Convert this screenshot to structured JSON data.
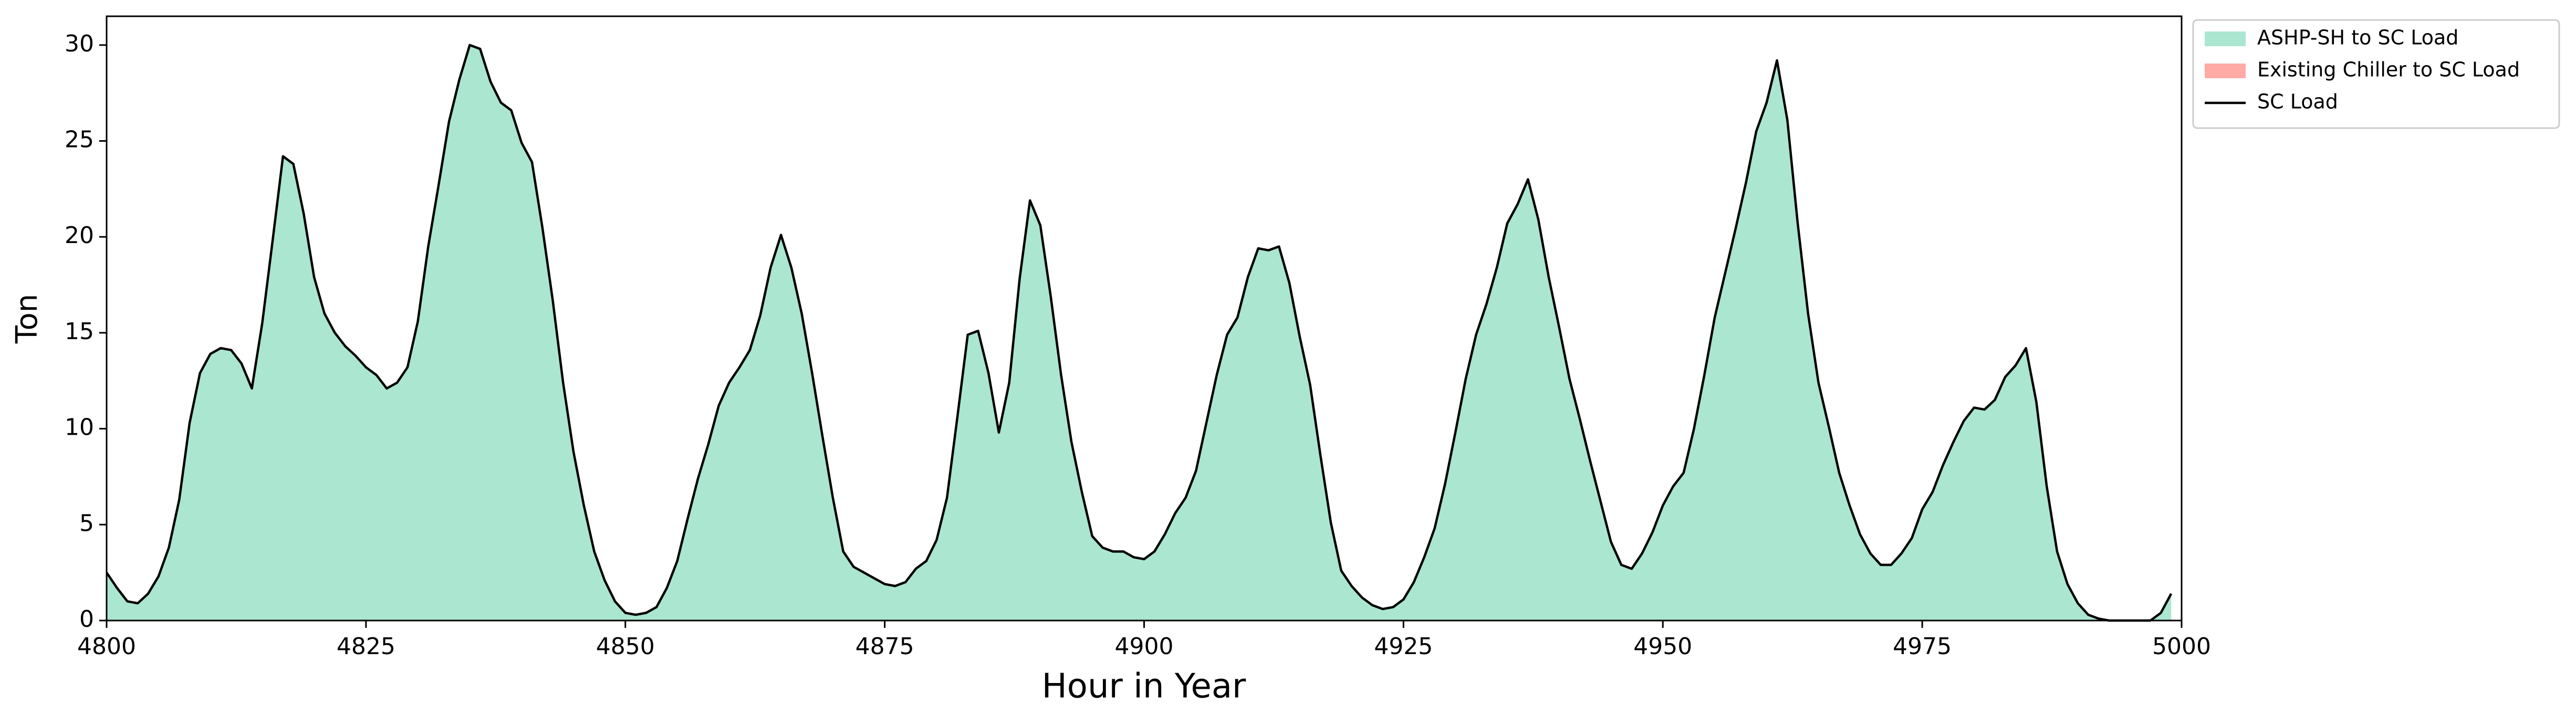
{
  "chart_data": {
    "type": "stacked-area-line",
    "xlabel": "Hour in Year",
    "ylabel": "Ton",
    "x": [
      4800,
      4801,
      4802,
      4803,
      4804,
      4805,
      4806,
      4807,
      4808,
      4809,
      4810,
      4811,
      4812,
      4813,
      4814,
      4815,
      4816,
      4817,
      4818,
      4819,
      4820,
      4821,
      4822,
      4823,
      4824,
      4825,
      4826,
      4827,
      4828,
      4829,
      4830,
      4831,
      4832,
      4833,
      4834,
      4835,
      4836,
      4837,
      4838,
      4839,
      4840,
      4841,
      4842,
      4843,
      4844,
      4845,
      4846,
      4847,
      4848,
      4849,
      4850,
      4851,
      4852,
      4853,
      4854,
      4855,
      4856,
      4857,
      4858,
      4859,
      4860,
      4861,
      4862,
      4863,
      4864,
      4865,
      4866,
      4867,
      4868,
      4869,
      4870,
      4871,
      4872,
      4873,
      4874,
      4875,
      4876,
      4877,
      4878,
      4879,
      4880,
      4881,
      4882,
      4883,
      4884,
      4885,
      4886,
      4887,
      4888,
      4889,
      4890,
      4891,
      4892,
      4893,
      4894,
      4895,
      4896,
      4897,
      4898,
      4899,
      4900,
      4901,
      4902,
      4903,
      4904,
      4905,
      4906,
      4907,
      4908,
      4909,
      4910,
      4911,
      4912,
      4913,
      4914,
      4915,
      4916,
      4917,
      4918,
      4919,
      4920,
      4921,
      4922,
      4923,
      4924,
      4925,
      4926,
      4927,
      4928,
      4929,
      4930,
      4931,
      4932,
      4933,
      4934,
      4935,
      4936,
      4937,
      4938,
      4939,
      4940,
      4941,
      4942,
      4943,
      4944,
      4945,
      4946,
      4947,
      4948,
      4949,
      4950,
      4951,
      4952,
      4953,
      4954,
      4955,
      4956,
      4957,
      4958,
      4959,
      4960,
      4961,
      4962,
      4963,
      4964,
      4965,
      4966,
      4967,
      4968,
      4969,
      4970,
      4971,
      4972,
      4973,
      4974,
      4975,
      4976,
      4977,
      4978,
      4979,
      4980,
      4981,
      4982,
      4983,
      4984,
      4985,
      4986,
      4987,
      4988,
      4989,
      4990,
      4991,
      4992,
      4993,
      4994,
      4995,
      4996,
      4997,
      4998,
      4999
    ],
    "series": [
      {
        "name": "ASHP-SH to SC Load",
        "kind": "area",
        "color": "#aae6d0",
        "values": [
          2.5,
          1.7,
          1.0,
          0.9,
          1.4,
          2.3,
          3.8,
          6.3,
          10.3,
          12.9,
          13.9,
          14.2,
          14.1,
          13.4,
          12.1,
          15.5,
          19.8,
          24.2,
          23.8,
          21.2,
          17.9,
          16.0,
          15.0,
          14.3,
          13.8,
          13.2,
          12.8,
          12.1,
          12.4,
          13.2,
          15.6,
          19.5,
          22.7,
          26.0,
          28.2,
          30.0,
          29.8,
          28.1,
          27.0,
          26.6,
          24.9,
          23.9,
          20.5,
          16.7,
          12.4,
          8.8,
          6.0,
          3.6,
          2.1,
          1.0,
          0.4,
          0.3,
          0.4,
          0.7,
          1.7,
          3.1,
          5.3,
          7.4,
          9.2,
          11.2,
          12.4,
          13.2,
          14.1,
          15.9,
          18.4,
          20.1,
          18.4,
          16.0,
          12.9,
          9.6,
          6.4,
          3.6,
          2.8,
          2.5,
          2.2,
          1.9,
          1.8,
          2.0,
          2.7,
          3.1,
          4.2,
          6.4,
          10.6,
          14.9,
          15.1,
          12.9,
          9.8,
          12.4,
          17.8,
          21.9,
          20.6,
          16.9,
          12.8,
          9.3,
          6.7,
          4.4,
          3.8,
          3.6,
          3.6,
          3.3,
          3.2,
          3.6,
          4.5,
          5.6,
          6.4,
          7.8,
          10.3,
          12.8,
          14.9,
          15.8,
          17.9,
          19.4,
          19.3,
          19.5,
          17.6,
          14.8,
          12.3,
          8.6,
          5.1,
          2.6,
          1.8,
          1.2,
          0.8,
          0.6,
          0.7,
          1.1,
          2.0,
          3.3,
          4.8,
          7.1,
          9.8,
          12.6,
          14.9,
          16.5,
          18.4,
          20.7,
          21.7,
          23.0,
          20.9,
          17.9,
          15.3,
          12.6,
          10.5,
          8.3,
          6.2,
          4.1,
          2.9,
          2.7,
          3.5,
          4.6,
          6.0,
          7.0,
          7.7,
          10.0,
          12.8,
          15.8,
          18.1,
          20.4,
          22.8,
          25.5,
          27.0,
          29.2,
          26.1,
          20.7,
          16.0,
          12.4,
          10.1,
          7.7,
          6.0,
          4.5,
          3.5,
          2.9,
          2.9,
          3.5,
          4.3,
          5.8,
          6.7,
          8.1,
          9.3,
          10.4,
          11.1,
          11.0,
          11.5,
          12.7,
          13.3,
          14.2,
          11.4,
          7.0,
          3.6,
          1.9,
          0.9,
          0.3,
          0.1,
          0,
          0,
          0,
          0,
          0,
          0.4,
          1.4
        ]
      },
      {
        "name": "Existing Chiller to SC Load",
        "kind": "area",
        "color": "#ffaaa5",
        "values": [
          0,
          0,
          0,
          0,
          0,
          0,
          0,
          0,
          0,
          0,
          0,
          0,
          0,
          0,
          0,
          0,
          0,
          0,
          0,
          0,
          0,
          0,
          0,
          0,
          0,
          0,
          0,
          0,
          0,
          0,
          0,
          0,
          0,
          0,
          0,
          0,
          0,
          0,
          0,
          0,
          0,
          0,
          0,
          0,
          0,
          0,
          0,
          0,
          0,
          0,
          0,
          0,
          0,
          0,
          0,
          0,
          0,
          0,
          0,
          0,
          0,
          0,
          0,
          0,
          0,
          0,
          0,
          0,
          0,
          0,
          0,
          0,
          0,
          0,
          0,
          0,
          0,
          0,
          0,
          0,
          0,
          0,
          0,
          0,
          0,
          0,
          0,
          0,
          0,
          0,
          0,
          0,
          0,
          0,
          0,
          0,
          0,
          0,
          0,
          0,
          0,
          0,
          0,
          0,
          0,
          0,
          0,
          0,
          0,
          0,
          0,
          0,
          0,
          0,
          0,
          0,
          0,
          0,
          0,
          0,
          0,
          0,
          0,
          0,
          0,
          0,
          0,
          0,
          0,
          0,
          0,
          0,
          0,
          0,
          0,
          0,
          0,
          0,
          0,
          0,
          0,
          0,
          0,
          0,
          0,
          0,
          0,
          0,
          0,
          0,
          0,
          0,
          0,
          0,
          0,
          0,
          0,
          0,
          0,
          0,
          0,
          0,
          0,
          0,
          0,
          0,
          0,
          0,
          0,
          0,
          0,
          0,
          0,
          0,
          0,
          0,
          0,
          0,
          0,
          0,
          0,
          0,
          0,
          0,
          0,
          0,
          0,
          0,
          0,
          0,
          0,
          0,
          0,
          0,
          0,
          0,
          0,
          0,
          0,
          0
        ]
      },
      {
        "name": "SC Load",
        "kind": "line",
        "color": "#000000",
        "values": [
          2.5,
          1.7,
          1.0,
          0.9,
          1.4,
          2.3,
          3.8,
          6.3,
          10.3,
          12.9,
          13.9,
          14.2,
          14.1,
          13.4,
          12.1,
          15.5,
          19.8,
          24.2,
          23.8,
          21.2,
          17.9,
          16.0,
          15.0,
          14.3,
          13.8,
          13.2,
          12.8,
          12.1,
          12.4,
          13.2,
          15.6,
          19.5,
          22.7,
          26.0,
          28.2,
          30.0,
          29.8,
          28.1,
          27.0,
          26.6,
          24.9,
          23.9,
          20.5,
          16.7,
          12.4,
          8.8,
          6.0,
          3.6,
          2.1,
          1.0,
          0.4,
          0.3,
          0.4,
          0.7,
          1.7,
          3.1,
          5.3,
          7.4,
          9.2,
          11.2,
          12.4,
          13.2,
          14.1,
          15.9,
          18.4,
          20.1,
          18.4,
          16.0,
          12.9,
          9.6,
          6.4,
          3.6,
          2.8,
          2.5,
          2.2,
          1.9,
          1.8,
          2.0,
          2.7,
          3.1,
          4.2,
          6.4,
          10.6,
          14.9,
          15.1,
          12.9,
          9.8,
          12.4,
          17.8,
          21.9,
          20.6,
          16.9,
          12.8,
          9.3,
          6.7,
          4.4,
          3.8,
          3.6,
          3.6,
          3.3,
          3.2,
          3.6,
          4.5,
          5.6,
          6.4,
          7.8,
          10.3,
          12.8,
          14.9,
          15.8,
          17.9,
          19.4,
          19.3,
          19.5,
          17.6,
          14.8,
          12.3,
          8.6,
          5.1,
          2.6,
          1.8,
          1.2,
          0.8,
          0.6,
          0.7,
          1.1,
          2.0,
          3.3,
          4.8,
          7.1,
          9.8,
          12.6,
          14.9,
          16.5,
          18.4,
          20.7,
          21.7,
          23.0,
          20.9,
          17.9,
          15.3,
          12.6,
          10.5,
          8.3,
          6.2,
          4.1,
          2.9,
          2.7,
          3.5,
          4.6,
          6.0,
          7.0,
          7.7,
          10.0,
          12.8,
          15.8,
          18.1,
          20.4,
          22.8,
          25.5,
          27.0,
          29.2,
          26.1,
          20.7,
          16.0,
          12.4,
          10.1,
          7.7,
          6.0,
          4.5,
          3.5,
          2.9,
          2.9,
          3.5,
          4.3,
          5.8,
          6.7,
          8.1,
          9.3,
          10.4,
          11.1,
          11.0,
          11.5,
          12.7,
          13.3,
          14.2,
          11.4,
          7.0,
          3.6,
          1.9,
          0.9,
          0.3,
          0.1,
          0,
          0,
          0,
          0,
          0,
          0.4,
          1.4
        ]
      }
    ],
    "xlim": [
      4800,
      5000
    ],
    "xticks": [
      4800,
      4825,
      4850,
      4875,
      4900,
      4925,
      4950,
      4975,
      5000
    ],
    "ylim": [
      0,
      31.5
    ],
    "yticks": [
      0,
      5,
      10,
      15,
      20,
      25,
      30
    ],
    "legend": "outside-upper-right"
  }
}
